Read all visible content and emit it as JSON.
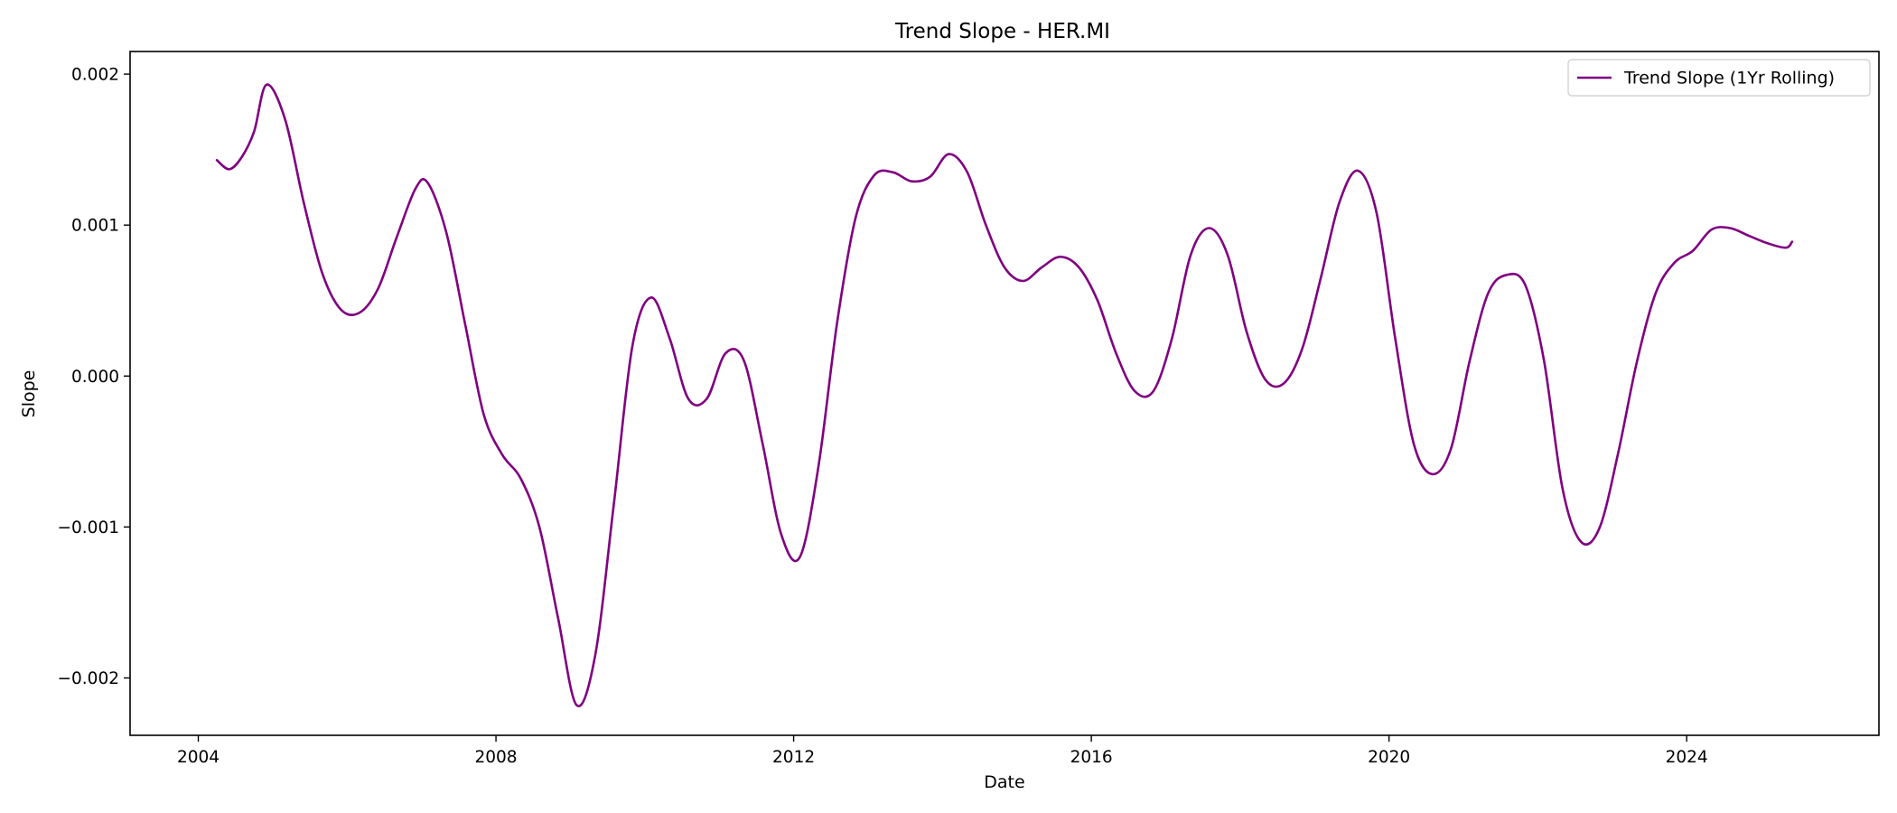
{
  "chart_data": {
    "type": "line",
    "title": "Trend Slope - HER.MI",
    "xlabel": "Date",
    "ylabel": "Slope",
    "xlim": [
      "2003-02",
      "2026-08"
    ],
    "ylim": [
      -0.00238,
      0.00215
    ],
    "xticks": [
      {
        "date": "2004-01",
        "label": "2004"
      },
      {
        "date": "2008-01",
        "label": "2008"
      },
      {
        "date": "2012-01",
        "label": "2012"
      },
      {
        "date": "2016-01",
        "label": "2016"
      },
      {
        "date": "2020-01",
        "label": "2020"
      },
      {
        "date": "2024-01",
        "label": "2024"
      }
    ],
    "yticks": [
      {
        "value": 0.002,
        "label": "0.002"
      },
      {
        "value": 0.001,
        "label": "0.001"
      },
      {
        "value": 0.0,
        "label": "0.000"
      },
      {
        "value": -0.001,
        "label": "−0.001"
      },
      {
        "value": -0.002,
        "label": "−0.002"
      }
    ],
    "grid": false,
    "legend_position": "top-right",
    "series": [
      {
        "name": "Trend Slope (1Yr Rolling)",
        "color": "#800080",
        "x": [
          "2004-04",
          "2004-06",
          "2004-08",
          "2004-10",
          "2004-12",
          "2005-03",
          "2005-06",
          "2005-09",
          "2005-12",
          "2006-03",
          "2006-06",
          "2006-09",
          "2006-12",
          "2007-02",
          "2007-05",
          "2007-08",
          "2007-11",
          "2008-02",
          "2008-05",
          "2008-08",
          "2008-11",
          "2009-02",
          "2009-05",
          "2009-08",
          "2009-11",
          "2010-02",
          "2010-05",
          "2010-08",
          "2010-11",
          "2011-02",
          "2011-05",
          "2011-08",
          "2011-11",
          "2012-02",
          "2012-05",
          "2012-08",
          "2012-11",
          "2013-02",
          "2013-05",
          "2013-08",
          "2013-11",
          "2014-02",
          "2014-05",
          "2014-08",
          "2014-11",
          "2015-02",
          "2015-05",
          "2015-08",
          "2015-11",
          "2016-02",
          "2016-05",
          "2016-08",
          "2016-11",
          "2017-02",
          "2017-05",
          "2017-08",
          "2017-11",
          "2018-02",
          "2018-05",
          "2018-08",
          "2018-11",
          "2019-02",
          "2019-05",
          "2019-08",
          "2019-11",
          "2020-02",
          "2020-05",
          "2020-08",
          "2020-11",
          "2021-02",
          "2021-05",
          "2021-08",
          "2021-11",
          "2022-02",
          "2022-05",
          "2022-08",
          "2022-11",
          "2023-02",
          "2023-05",
          "2023-08",
          "2023-11",
          "2024-02",
          "2024-05",
          "2024-08",
          "2024-11",
          "2025-02",
          "2025-05",
          "2025-06"
        ],
        "y": [
          0.00143,
          0.00137,
          0.00145,
          0.00162,
          0.00193,
          0.0017,
          0.00115,
          0.00068,
          0.00044,
          0.00042,
          0.00058,
          0.00092,
          0.00124,
          0.00128,
          0.00095,
          0.00035,
          -0.00025,
          -0.00052,
          -0.00068,
          -0.001,
          -0.0016,
          -0.00218,
          -0.00185,
          -0.00085,
          0.0002,
          0.00052,
          0.00025,
          -0.00015,
          -0.00015,
          0.00015,
          0.0001,
          -0.00045,
          -0.00105,
          -0.0012,
          -0.0006,
          0.00035,
          0.00105,
          0.00133,
          0.00135,
          0.00129,
          0.00132,
          0.00147,
          0.00135,
          0.001,
          0.00072,
          0.00063,
          0.00072,
          0.00079,
          0.00072,
          0.0005,
          0.00015,
          -0.0001,
          -0.0001,
          0.00025,
          0.0008,
          0.00098,
          0.0008,
          0.0003,
          -2e-05,
          -5e-05,
          0.00018,
          0.00065,
          0.00115,
          0.00136,
          0.00108,
          0.00025,
          -0.00045,
          -0.00065,
          -0.00048,
          0.0001,
          0.00055,
          0.00067,
          0.0006,
          0.0001,
          -0.00075,
          -0.0011,
          -0.001,
          -0.0005,
          0.0001,
          0.00055,
          0.00075,
          0.00083,
          0.00097,
          0.00098,
          0.00093,
          0.00088,
          0.00085,
          0.00089
        ]
      }
    ]
  }
}
